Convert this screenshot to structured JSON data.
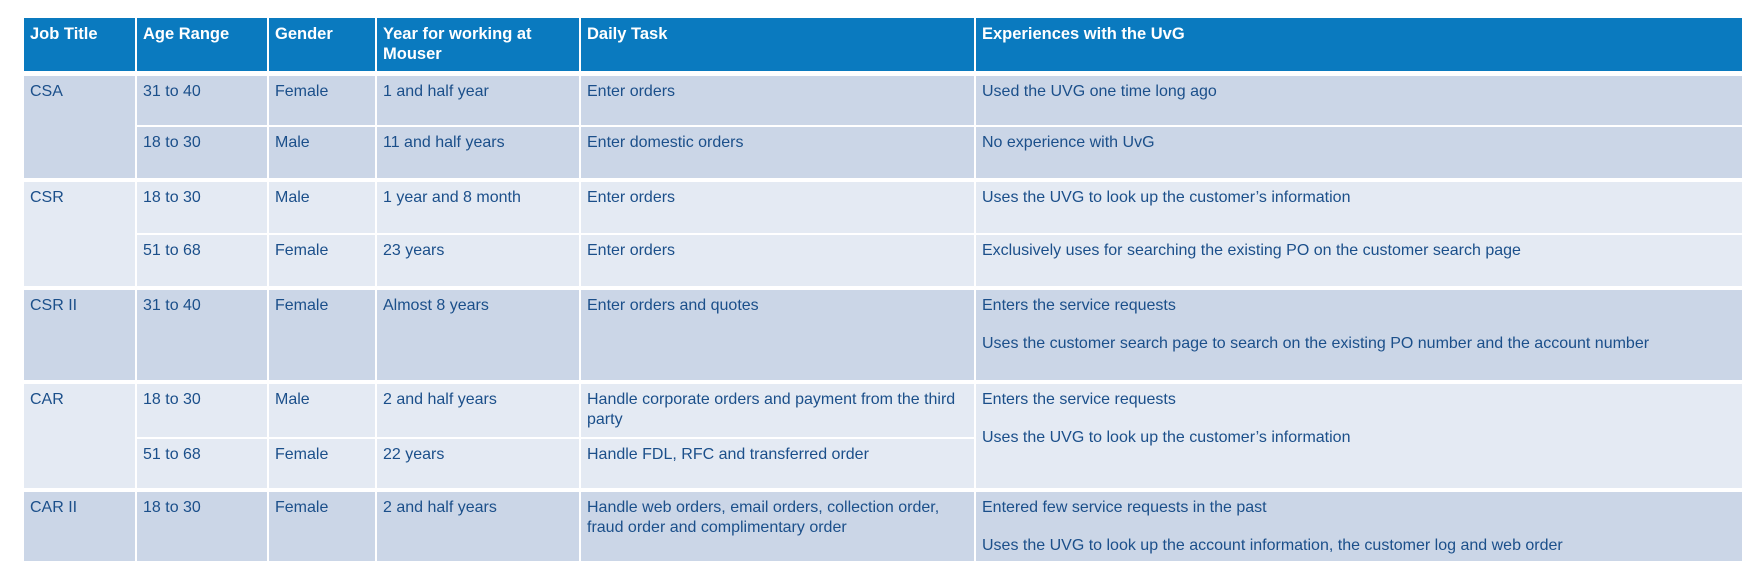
{
  "table": {
    "headers": [
      "Job Title",
      "Age Range",
      "Gender",
      "Year for working at Mouser",
      "Daily Task",
      "Experiences with the UvG"
    ],
    "groups": [
      {
        "job_title": "CSA",
        "rows": [
          {
            "age": "31 to 40",
            "gender": "Female",
            "years": "1 and half year",
            "task": "Enter orders",
            "experience": [
              "Used the UVG one time long ago"
            ]
          },
          {
            "age": "18 to 30",
            "gender": "Male",
            "years": "11 and half years",
            "task": "Enter domestic orders",
            "experience": [
              "No experience with UvG"
            ]
          }
        ]
      },
      {
        "job_title": "CSR",
        "rows": [
          {
            "age": "18 to 30",
            "gender": "Male",
            "years": "1 year and 8 month",
            "task": "Enter orders",
            "experience": [
              "Uses the UVG to look up the customer’s information"
            ]
          },
          {
            "age": "51 to 68",
            "gender": "Female",
            "years": "23 years",
            "task": "Enter orders",
            "experience": [
              "Exclusively uses for searching the existing PO on the customer search page"
            ]
          }
        ]
      },
      {
        "job_title": "CSR II",
        "rows": [
          {
            "age": "31 to 40",
            "gender": "Female",
            "years": "Almost 8 years",
            "task": "Enter orders and quotes",
            "experience": [
              "Enters the service requests",
              "Uses the customer search page to search on the existing PO number and the account number"
            ]
          }
        ]
      },
      {
        "job_title": "CAR",
        "rows": [
          {
            "age": "18 to 30",
            "gender": "Male",
            "years": "2 and half years",
            "task": "Handle corporate orders and payment from the third party"
          },
          {
            "age": "51 to 68",
            "gender": "Female",
            "years": "22 years",
            "task": "Handle FDL, RFC and transferred order"
          }
        ],
        "experience": [
          "Enters the service requests",
          "Uses the UVG to look up the customer’s information"
        ]
      },
      {
        "job_title": "CAR II",
        "rows": [
          {
            "age": "18 to 30",
            "gender": "Female",
            "years": "2 and half years",
            "task": "Handle web orders, email orders, collection order, fraud order and complimentary order",
            "experience": [
              "Entered few service requests in the past",
              "Uses the UVG to look up the account information, the customer log and web order"
            ]
          }
        ]
      }
    ],
    "colors": {
      "header": "#0a7abf",
      "row_dark": "#cbd6e7",
      "row_light": "#e4eaf3",
      "text": "#1b4f8a"
    }
  }
}
